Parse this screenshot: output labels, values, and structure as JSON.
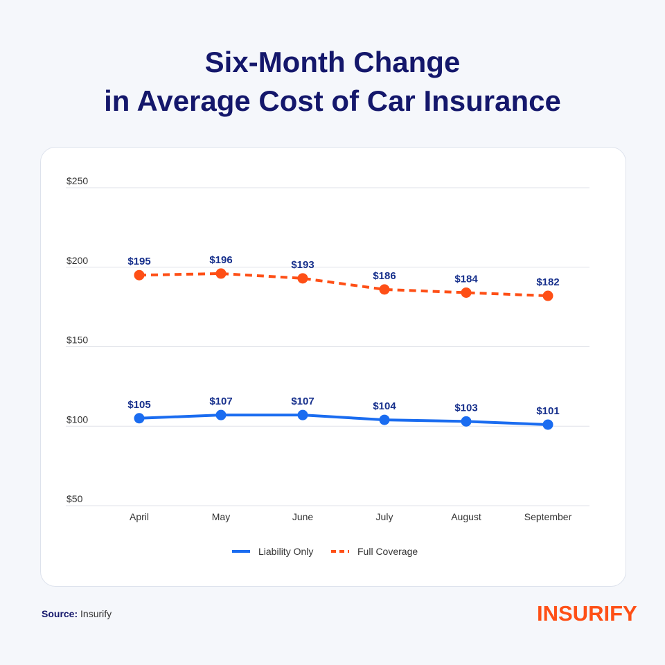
{
  "title_line1": "Six-Month Change",
  "title_line2": "in Average Cost of Car Insurance",
  "source_label": "Source:",
  "source_value": "Insurify",
  "logo": "INSURIFY",
  "chart_data": {
    "type": "line",
    "categories": [
      "April",
      "May",
      "June",
      "July",
      "August",
      "September"
    ],
    "ylim": [
      50,
      250
    ],
    "yticks": [
      50,
      100,
      150,
      200,
      250
    ],
    "ytick_labels": [
      "$50",
      "$100",
      "$150",
      "$200",
      "$250"
    ],
    "grid": true,
    "legend_position": "bottom",
    "series": [
      {
        "name": "Liability Only",
        "values": [
          105,
          107,
          107,
          104,
          103,
          101
        ],
        "labels": [
          "$105",
          "$107",
          "$107",
          "$104",
          "$103",
          "$101"
        ],
        "color": "#1a6cf0",
        "style": "solid"
      },
      {
        "name": "Full Coverage",
        "values": [
          195,
          196,
          193,
          186,
          184,
          182
        ],
        "labels": [
          "$195",
          "$196",
          "$193",
          "$186",
          "$184",
          "$182"
        ],
        "color": "#fe4f16",
        "style": "dashed"
      }
    ],
    "label_color": "#17308c"
  }
}
